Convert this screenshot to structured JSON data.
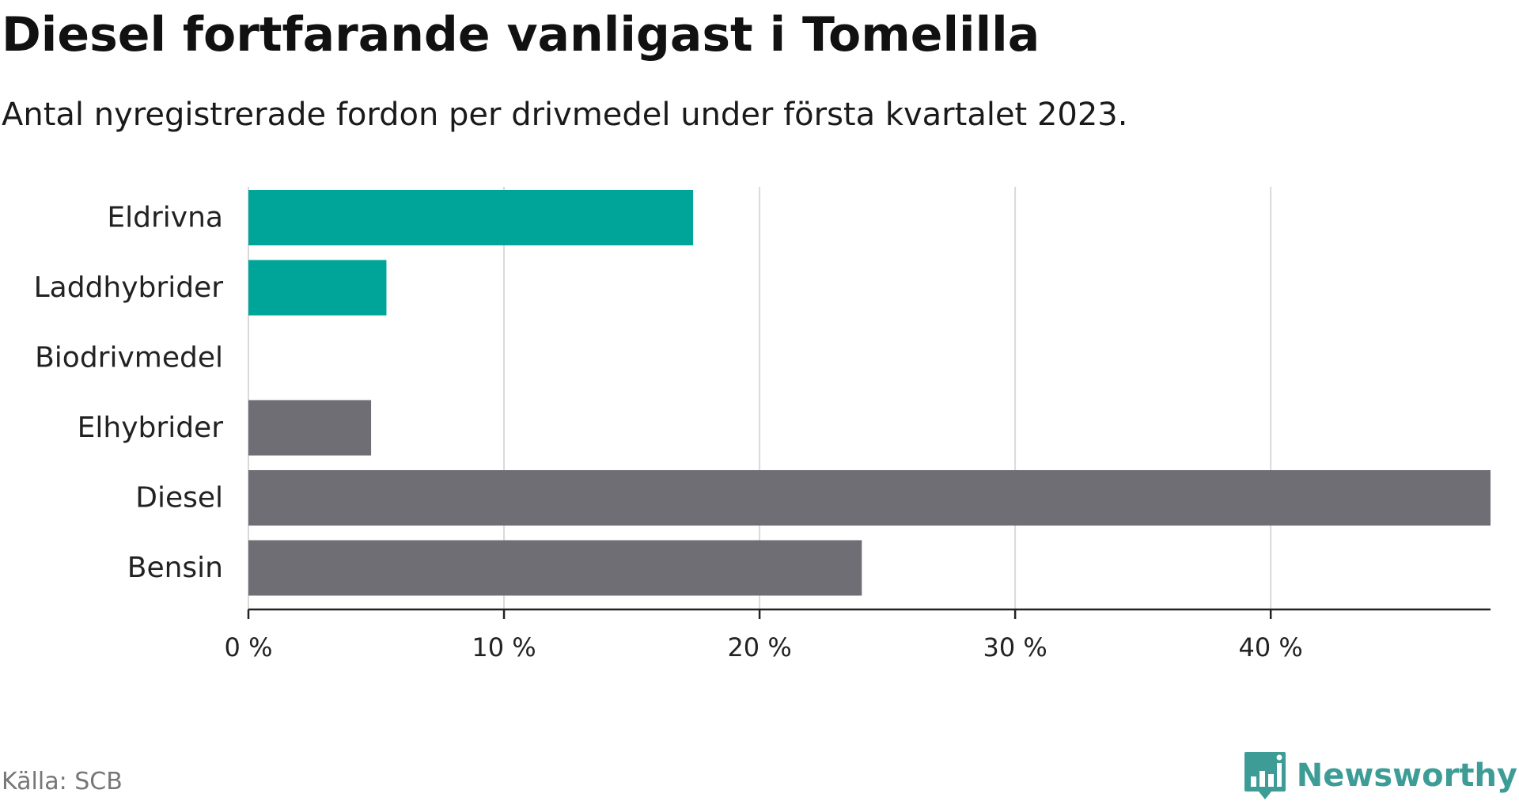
{
  "title": "Diesel fortfarande vanligast i Tomelilla",
  "subtitle": "Antal nyregistrerade fordon per drivmedel under första kvartalet 2023.",
  "source": "Källa: SCB",
  "brand": {
    "name": "Newsworthy",
    "icon": "newsworthy-logo-icon",
    "color": "#3d9d96"
  },
  "colors": {
    "highlight": "#00a59a",
    "default": "#6f6e75",
    "grid": "#d9d9d9",
    "axis": "#222222"
  },
  "chart_data": {
    "type": "bar",
    "orientation": "horizontal",
    "categories": [
      "Eldrivna",
      "Laddhybrider",
      "Biodrivmedel",
      "Elhybrider",
      "Diesel",
      "Bensin"
    ],
    "values": [
      17.4,
      5.4,
      0,
      4.8,
      48.6,
      24.0
    ],
    "bar_colors": [
      "#00a59a",
      "#00a59a",
      "#6f6e75",
      "#6f6e75",
      "#6f6e75",
      "#6f6e75"
    ],
    "xlim": [
      0,
      48.6
    ],
    "ticks": [
      0,
      10,
      20,
      30,
      40
    ],
    "tick_labels": [
      "0 %",
      "10 %",
      "20 %",
      "30 %",
      "40 %"
    ],
    "unit": "%",
    "grid": true,
    "legend": "none"
  }
}
